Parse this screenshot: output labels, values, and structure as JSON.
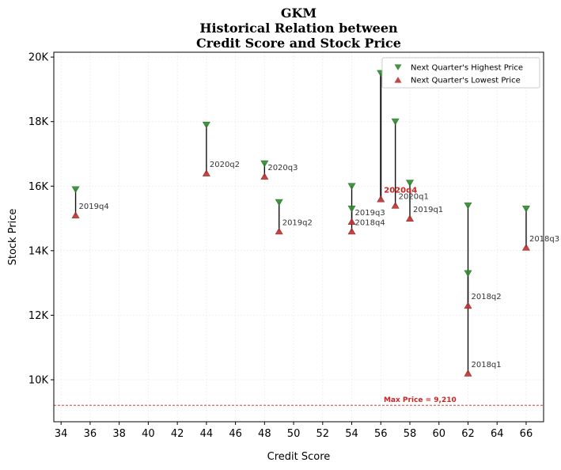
{
  "chart_data": {
    "type": "scatter",
    "title_lines": [
      "GKM",
      "Historical Relation between",
      "Credit Score and Stock Price"
    ],
    "xlabel": "Credit Score",
    "ylabel": "Stock Price",
    "xlim": [
      33.5,
      67.2
    ],
    "ylim": [
      8700,
      20150
    ],
    "xticks": [
      34,
      36,
      38,
      40,
      42,
      44,
      46,
      48,
      50,
      52,
      54,
      56,
      58,
      60,
      62,
      64,
      66
    ],
    "yticks": [
      {
        "value": 10000,
        "label": "10K"
      },
      {
        "value": 12000,
        "label": "12K"
      },
      {
        "value": 14000,
        "label": "14K"
      },
      {
        "value": 16000,
        "label": "16K"
      },
      {
        "value": 18000,
        "label": "18K"
      },
      {
        "value": 20000,
        "label": "20K"
      }
    ],
    "grid": true,
    "legend": {
      "placement": "top-right",
      "entries": [
        {
          "name": "Next Quarter's Highest Price",
          "marker": "triangle-down",
          "color": "#2e8b2e"
        },
        {
          "name": "Next Quarter's Lowest Price",
          "marker": "triangle-up",
          "color": "#c03030"
        }
      ]
    },
    "points": [
      {
        "label": "2019q4",
        "credit_score": 35,
        "high": 15900,
        "low": 15100
      },
      {
        "label": "2020q2",
        "credit_score": 44,
        "high": 17900,
        "low": 16400
      },
      {
        "label": "2020q3",
        "credit_score": 48,
        "high": 16700,
        "low": 16300
      },
      {
        "label": "2019q2",
        "credit_score": 49,
        "high": 15500,
        "low": 14600
      },
      {
        "label": "2019q3",
        "credit_score": 54,
        "high": 16000,
        "low": 14900
      },
      {
        "label": "2018q4",
        "credit_score": 54,
        "high": 15300,
        "low": 14600
      },
      {
        "label": "2020q4",
        "credit_score": 56,
        "high": 19500,
        "low": 15600,
        "highlight": true
      },
      {
        "label": "2020q1",
        "credit_score": 57,
        "high": 18000,
        "low": 15400
      },
      {
        "label": "2019q1",
        "credit_score": 58,
        "high": 16100,
        "low": 15000
      },
      {
        "label": "2018q2",
        "credit_score": 62,
        "high": 13300,
        "low": 12300
      },
      {
        "label": "2018q1",
        "credit_score": 62,
        "high": 15400,
        "low": 10200
      },
      {
        "label": "2018q3",
        "credit_score": 66,
        "high": 15300,
        "low": 14100
      }
    ],
    "reference_line": {
      "value": 9210,
      "label": "Max Price = 9,210",
      "color": "#cc2222"
    }
  }
}
